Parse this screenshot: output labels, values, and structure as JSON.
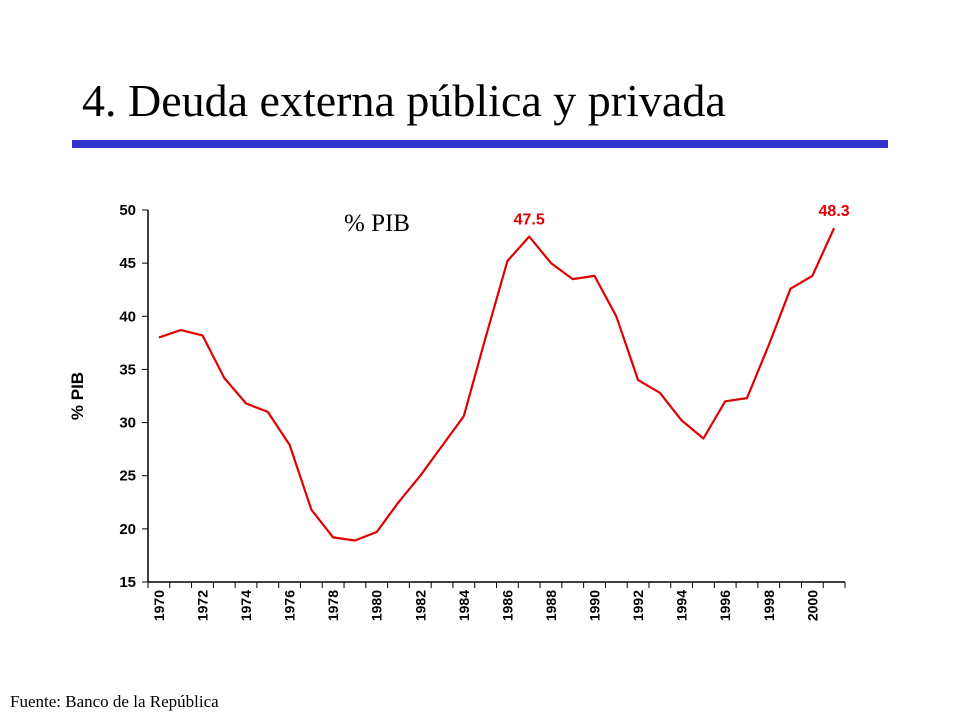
{
  "slide": {
    "title": "4. Deuda externa pública y privada",
    "footer": "Fuente: Banco de la República"
  },
  "chart_data": {
    "type": "line",
    "title": "",
    "inline_label": "% PIB",
    "ylabel": "% PIB",
    "xlabel": "",
    "ylim": [
      15,
      50
    ],
    "yticks": [
      15,
      20,
      25,
      30,
      35,
      40,
      45,
      50
    ],
    "xtick_labels": [
      "1970",
      "1972",
      "1974",
      "1976",
      "1978",
      "1980",
      "1982",
      "1984",
      "1986",
      "1988",
      "1990",
      "1992",
      "1994",
      "1996",
      "1998",
      "2000"
    ],
    "x": [
      1970,
      1971,
      1972,
      1973,
      1974,
      1975,
      1976,
      1977,
      1978,
      1979,
      1980,
      1981,
      1982,
      1983,
      1984,
      1985,
      1986,
      1987,
      1988,
      1989,
      1990,
      1991,
      1992,
      1993,
      1994,
      1995,
      1996,
      1997,
      1998,
      1999,
      2000,
      2001
    ],
    "series": [
      {
        "color": "#e00000",
        "values": [
          38.0,
          38.7,
          38.2,
          34.2,
          31.8,
          31.0,
          27.9,
          21.8,
          19.2,
          18.9,
          19.7,
          22.5,
          25.0,
          27.8,
          30.6,
          38.0,
          45.2,
          47.5,
          45.0,
          43.5,
          43.8,
          40.0,
          34.0,
          32.8,
          30.2,
          28.5,
          32.0,
          32.3,
          37.3,
          42.6,
          43.8,
          48.3
        ]
      }
    ],
    "annotations": [
      {
        "text": "47.5",
        "x": 1987,
        "y": 47.5,
        "color": "#e00000"
      },
      {
        "text": "48.3",
        "x": 2001,
        "y": 48.3,
        "color": "#e00000"
      }
    ],
    "grid": false,
    "legend": "none"
  }
}
